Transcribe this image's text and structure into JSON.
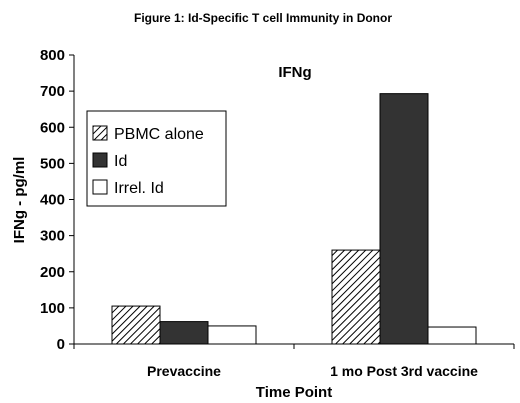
{
  "chart_data": {
    "type": "bar",
    "title": "Figure 1: Id-Specific T cell Immunity in Donor",
    "subtitle": "IFNg",
    "xlabel": "Time Point",
    "ylabel": "IFNg - pg/ml",
    "ylim": [
      0,
      800
    ],
    "yticks": [
      0,
      100,
      200,
      300,
      400,
      500,
      600,
      700,
      800
    ],
    "grid": false,
    "legend_position": "left",
    "categories": [
      "Prevaccine",
      "1 mo Post 3rd vaccine"
    ],
    "series": [
      {
        "name": "PBMC alone",
        "values": [
          105,
          260
        ],
        "pattern": "diagonal-hatch"
      },
      {
        "name": "Id",
        "values": [
          62,
          693
        ],
        "color": "#333333"
      },
      {
        "name": "Irrel. Id",
        "values": [
          50,
          47
        ],
        "color": "#ffffff"
      }
    ]
  }
}
